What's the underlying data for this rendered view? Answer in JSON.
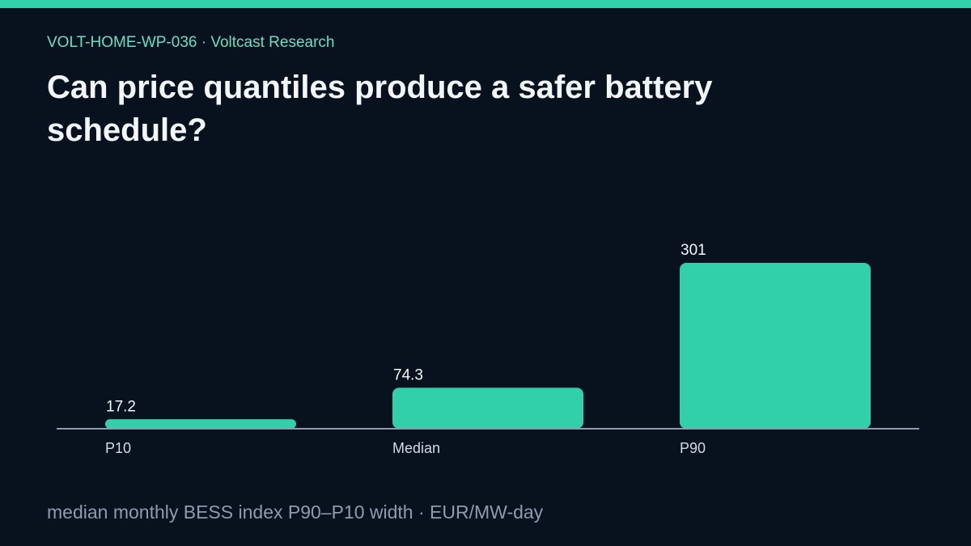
{
  "header": {
    "eyebrow": "VOLT-HOME-WP-036 · Voltcast Research",
    "title": "Can price quantiles produce a safer battery schedule?"
  },
  "footer": {
    "caption": "median monthly BESS index P90–P10 width · EUR/MW-day"
  },
  "colors": {
    "accent": "#31d0ab",
    "background": "#08121e",
    "axis": "#8e9cae"
  },
  "chart_data": {
    "type": "bar",
    "categories": [
      "P10",
      "Median",
      "P90"
    ],
    "values": [
      17.2,
      74.3,
      301
    ],
    "value_labels": [
      "17.2",
      "74.3",
      "301"
    ],
    "ylim": [
      0,
      301
    ],
    "grid": false,
    "legend": "none"
  }
}
